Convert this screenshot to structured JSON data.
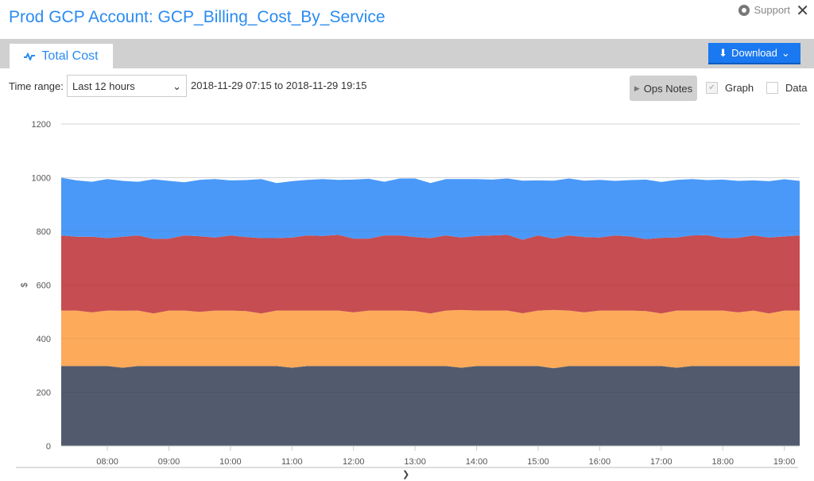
{
  "header": {
    "title": "Prod GCP Account: GCP_Billing_Cost_By_Service",
    "support_label": "Support",
    "support_icon": "lifebuoy-icon",
    "close_icon": "close-icon"
  },
  "tabs": [
    {
      "label": "Total Cost",
      "icon": "graph-icon",
      "active": true
    }
  ],
  "toolbar": {
    "download_label": "Download",
    "time_range_label": "Time range:",
    "time_range_value": "Last 12 hours",
    "range_text": "2018-11-29 07:15 to 2018-11-29 19:15",
    "ops_notes_label": "Ops Notes",
    "graph_label": "Graph",
    "graph_checked": true,
    "data_label": "Data",
    "data_checked": false
  },
  "colors": {
    "accent": "#2a8bf2",
    "button": "#1a78f0"
  },
  "chart_data": {
    "type": "area",
    "stacked": true,
    "ylabel": "$",
    "ylim": [
      0,
      1200
    ],
    "yticks": [
      0,
      200,
      400,
      600,
      800,
      1000,
      1200
    ],
    "xticks": [
      "08:00",
      "09:00",
      "10:00",
      "11:00",
      "12:00",
      "13:00",
      "14:00",
      "15:00",
      "16:00",
      "17:00",
      "18:00",
      "19:00"
    ],
    "x_start": "07:15",
    "x_end": "19:15",
    "x_step_minutes": 15,
    "grid": true,
    "series": [
      {
        "color": "#525b6e",
        "values": [
          298,
          298,
          298,
          298,
          292,
          298,
          298,
          298,
          298,
          298,
          298,
          298,
          298,
          298,
          298,
          292,
          298,
          298,
          298,
          298,
          298,
          298,
          298,
          298,
          298,
          298,
          292,
          298,
          298,
          298,
          298,
          298,
          290,
          298,
          298,
          298,
          298,
          298,
          298,
          298,
          292,
          298,
          298,
          298,
          298,
          298,
          298,
          298,
          298
        ]
      },
      {
        "color": "#fdaa5a",
        "values": [
          207,
          207,
          200,
          207,
          212,
          207,
          196,
          207,
          207,
          202,
          207,
          207,
          205,
          196,
          207,
          213,
          207,
          207,
          207,
          200,
          207,
          207,
          207,
          205,
          196,
          207,
          215,
          207,
          207,
          207,
          197,
          207,
          217,
          207,
          200,
          207,
          207,
          207,
          205,
          196,
          213,
          207,
          207,
          207,
          200,
          207,
          196,
          207,
          207
        ]
      },
      {
        "color": "#c64d51",
        "values": [
          280,
          275,
          282,
          270,
          276,
          280,
          278,
          268,
          280,
          282,
          272,
          280,
          276,
          281,
          270,
          272,
          280,
          278,
          282,
          275,
          268,
          280,
          280,
          276,
          281,
          280,
          270,
          278,
          280,
          282,
          274,
          280,
          266,
          280,
          281,
          272,
          280,
          276,
          268,
          282,
          272,
          280,
          281,
          270,
          278,
          280,
          283,
          276,
          280
        ]
      },
      {
        "color": "#4a99f8",
        "values": [
          215,
          210,
          205,
          220,
          208,
          200,
          222,
          215,
          198,
          210,
          218,
          205,
          212,
          220,
          205,
          210,
          207,
          212,
          205,
          220,
          223,
          200,
          212,
          218,
          205,
          210,
          218,
          212,
          208,
          210,
          220,
          205,
          216,
          212,
          210,
          215,
          203,
          210,
          222,
          208,
          215,
          210,
          205,
          218,
          212,
          205,
          210,
          213,
          203
        ]
      }
    ]
  }
}
